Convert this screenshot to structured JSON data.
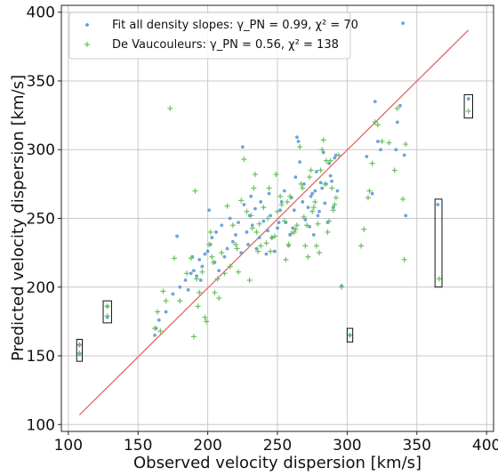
{
  "chart_data": {
    "type": "scatter",
    "xlabel": "Observed velocity dispersion [km/s]",
    "ylabel": "Predicted velocity dispersion [km/s]",
    "xlim": [
      95,
      405
    ],
    "ylim": [
      95,
      405
    ],
    "xticks": [
      "100",
      "150",
      "200",
      "250",
      "300",
      "350",
      "400"
    ],
    "yticks": [
      "100",
      "150",
      "200",
      "250",
      "300",
      "350",
      "400"
    ],
    "grid": true,
    "legend_position": "top-left",
    "series": [
      {
        "name": "Fit all density slopes: γ_PN = 0.99, χ² = 70",
        "marker": "dot",
        "color": "#5b9bd5",
        "points": [
          [
            108,
            151
          ],
          [
            108,
            158
          ],
          [
            128,
            178
          ],
          [
            128,
            186
          ],
          [
            162,
            165
          ],
          [
            163,
            170
          ],
          [
            165,
            176
          ],
          [
            170,
            182
          ],
          [
            175,
            195
          ],
          [
            178,
            237
          ],
          [
            180,
            200
          ],
          [
            184,
            205
          ],
          [
            186,
            198
          ],
          [
            188,
            210
          ],
          [
            189,
            222
          ],
          [
            190,
            212
          ],
          [
            192,
            208
          ],
          [
            194,
            220
          ],
          [
            195,
            205
          ],
          [
            196,
            215
          ],
          [
            198,
            224
          ],
          [
            200,
            226
          ],
          [
            201,
            256
          ],
          [
            202,
            231
          ],
          [
            203,
            236
          ],
          [
            205,
            218
          ],
          [
            206,
            240
          ],
          [
            208,
            212
          ],
          [
            210,
            245
          ],
          [
            212,
            222
          ],
          [
            214,
            228
          ],
          [
            216,
            250
          ],
          [
            218,
            233
          ],
          [
            220,
            238
          ],
          [
            222,
            247
          ],
          [
            224,
            225
          ],
          [
            225,
            302
          ],
          [
            226,
            260
          ],
          [
            228,
            240
          ],
          [
            229,
            231
          ],
          [
            230,
            252
          ],
          [
            231,
            266
          ],
          [
            232,
            245
          ],
          [
            234,
            257
          ],
          [
            235,
            228
          ],
          [
            237,
            236
          ],
          [
            238,
            262
          ],
          [
            240,
            248
          ],
          [
            242,
            224
          ],
          [
            243,
            241
          ],
          [
            244,
            268
          ],
          [
            245,
            252
          ],
          [
            246,
            236
          ],
          [
            248,
            226
          ],
          [
            250,
            243
          ],
          [
            251,
            247
          ],
          [
            252,
            256
          ],
          [
            253,
            262
          ],
          [
            255,
            270
          ],
          [
            256,
            247
          ],
          [
            258,
            230
          ],
          [
            259,
            238
          ],
          [
            260,
            265
          ],
          [
            261,
            243
          ],
          [
            262,
            256
          ],
          [
            263,
            280
          ],
          [
            264,
            309
          ],
          [
            265,
            306
          ],
          [
            266,
            291
          ],
          [
            268,
            262
          ],
          [
            269,
            275
          ],
          [
            270,
            249
          ],
          [
            272,
            258
          ],
          [
            273,
            244
          ],
          [
            274,
            266
          ],
          [
            275,
            268
          ],
          [
            276,
            238
          ],
          [
            277,
            270
          ],
          [
            278,
            284
          ],
          [
            279,
            252
          ],
          [
            280,
            255
          ],
          [
            281,
            276
          ],
          [
            282,
            272
          ],
          [
            283,
            298
          ],
          [
            284,
            261
          ],
          [
            285,
            275
          ],
          [
            286,
            247
          ],
          [
            287,
            290
          ],
          [
            288,
            281
          ],
          [
            289,
            277
          ],
          [
            290,
            258
          ],
          [
            291,
            294
          ],
          [
            292,
            296
          ],
          [
            293,
            270
          ],
          [
            296,
            201
          ],
          [
            302,
            165
          ],
          [
            314,
            295
          ],
          [
            318,
            268
          ],
          [
            320,
            335
          ],
          [
            322,
            306
          ],
          [
            324,
            300
          ],
          [
            335,
            300
          ],
          [
            336,
            320
          ],
          [
            338,
            332
          ],
          [
            340,
            392
          ],
          [
            341,
            296
          ],
          [
            342,
            252
          ],
          [
            365,
            260
          ],
          [
            387,
            337
          ]
        ]
      },
      {
        "name": "De Vaucouleurs: γ_PN = 0.56, χ² = 138",
        "marker": "plus",
        "color": "#6abf5e",
        "points": [
          [
            108,
            158
          ],
          [
            108,
            152
          ],
          [
            128,
            186
          ],
          [
            128,
            179
          ],
          [
            162,
            170
          ],
          [
            164,
            182
          ],
          [
            166,
            168
          ],
          [
            168,
            197
          ],
          [
            170,
            190
          ],
          [
            173,
            330
          ],
          [
            176,
            221
          ],
          [
            180,
            190
          ],
          [
            185,
            210
          ],
          [
            188,
            221
          ],
          [
            190,
            164
          ],
          [
            191,
            270
          ],
          [
            192,
            206
          ],
          [
            193,
            186
          ],
          [
            194,
            196
          ],
          [
            196,
            211
          ],
          [
            198,
            178
          ],
          [
            199,
            175
          ],
          [
            201,
            231
          ],
          [
            202,
            240
          ],
          [
            203,
            222
          ],
          [
            204,
            218
          ],
          [
            205,
            196
          ],
          [
            207,
            206
          ],
          [
            208,
            192
          ],
          [
            210,
            225
          ],
          [
            212,
            210
          ],
          [
            214,
            259
          ],
          [
            216,
            215
          ],
          [
            218,
            245
          ],
          [
            220,
            231
          ],
          [
            221,
            228
          ],
          [
            222,
            211
          ],
          [
            224,
            263
          ],
          [
            226,
            293
          ],
          [
            228,
            255
          ],
          [
            230,
            205
          ],
          [
            231,
            252
          ],
          [
            232,
            243
          ],
          [
            233,
            272
          ],
          [
            234,
            282
          ],
          [
            235,
            240
          ],
          [
            236,
            226
          ],
          [
            237,
            246
          ],
          [
            238,
            230
          ],
          [
            240,
            258
          ],
          [
            242,
            232
          ],
          [
            243,
            250
          ],
          [
            244,
            272
          ],
          [
            245,
            226
          ],
          [
            246,
            236
          ],
          [
            248,
            237
          ],
          [
            249,
            282
          ],
          [
            250,
            255
          ],
          [
            252,
            266
          ],
          [
            253,
            260
          ],
          [
            255,
            248
          ],
          [
            256,
            220
          ],
          [
            257,
            262
          ],
          [
            258,
            231
          ],
          [
            259,
            266
          ],
          [
            260,
            239
          ],
          [
            262,
            240
          ],
          [
            263,
            242
          ],
          [
            264,
            245
          ],
          [
            266,
            302
          ],
          [
            267,
            275
          ],
          [
            268,
            272
          ],
          [
            269,
            251
          ],
          [
            270,
            230
          ],
          [
            271,
            245
          ],
          [
            272,
            222
          ],
          [
            273,
            280
          ],
          [
            274,
            285
          ],
          [
            275,
            255
          ],
          [
            276,
            258
          ],
          [
            277,
            262
          ],
          [
            278,
            230
          ],
          [
            279,
            246
          ],
          [
            280,
            225
          ],
          [
            281,
            285
          ],
          [
            282,
            300
          ],
          [
            283,
            307
          ],
          [
            284,
            275
          ],
          [
            285,
            292
          ],
          [
            286,
            240
          ],
          [
            287,
            248
          ],
          [
            288,
            292
          ],
          [
            289,
            272
          ],
          [
            290,
            256
          ],
          [
            291,
            260
          ],
          [
            292,
            265
          ],
          [
            294,
            296
          ],
          [
            296,
            200
          ],
          [
            302,
            165
          ],
          [
            310,
            230
          ],
          [
            312,
            242
          ],
          [
            315,
            265
          ],
          [
            316,
            270
          ],
          [
            318,
            290
          ],
          [
            320,
            320
          ],
          [
            322,
            318
          ],
          [
            325,
            306
          ],
          [
            330,
            305
          ],
          [
            334,
            285
          ],
          [
            336,
            330
          ],
          [
            340,
            264
          ],
          [
            341,
            220
          ],
          [
            342,
            304
          ],
          [
            366,
            206
          ],
          [
            387,
            328
          ]
        ]
      }
    ],
    "reference_line": {
      "name": "1:1",
      "color": "#e06666",
      "from": [
        108,
        107
      ],
      "to": [
        387,
        387
      ]
    },
    "highlight_boxes": [
      {
        "x": [
          106,
          110
        ],
        "y": [
          146,
          162
        ]
      },
      {
        "x": [
          125,
          131
        ],
        "y": [
          174,
          190
        ]
      },
      {
        "x": [
          300,
          304
        ],
        "y": [
          160,
          170
        ]
      },
      {
        "x": [
          363,
          368
        ],
        "y": [
          200,
          264
        ]
      },
      {
        "x": [
          384,
          390
        ],
        "y": [
          323,
          340
        ]
      }
    ]
  }
}
